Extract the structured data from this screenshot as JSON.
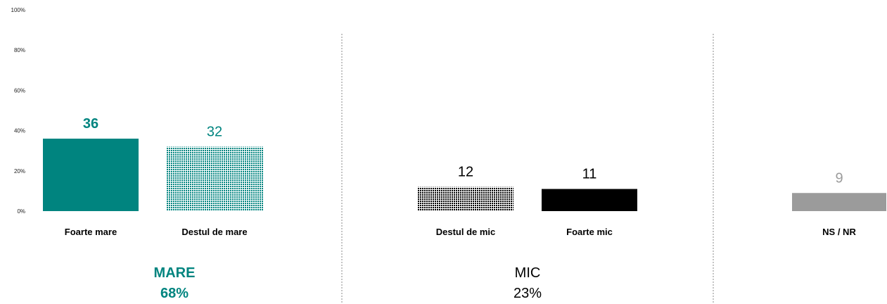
{
  "chart_data": {
    "type": "bar",
    "ylim": [
      0,
      100
    ],
    "yticks": [
      "0%",
      "20%",
      "40%",
      "60%",
      "80%",
      "100%"
    ],
    "categories": [
      "Foarte mare",
      "Destul de mare",
      "Destul de mic",
      "Foarte mic",
      "NS / NR"
    ],
    "values": [
      36,
      32,
      12,
      11,
      9
    ],
    "data_labels": [
      "36",
      "32",
      "12",
      "11",
      "9"
    ],
    "groups": [
      {
        "label": "MARE",
        "total": "68%"
      },
      {
        "label": "MIC",
        "total": "23%"
      }
    ],
    "grid": false,
    "legend": "none"
  },
  "colors": {
    "teal": "#00847f",
    "black": "#000000",
    "gray": "#9b9b9b",
    "axis_text": "#222222"
  }
}
